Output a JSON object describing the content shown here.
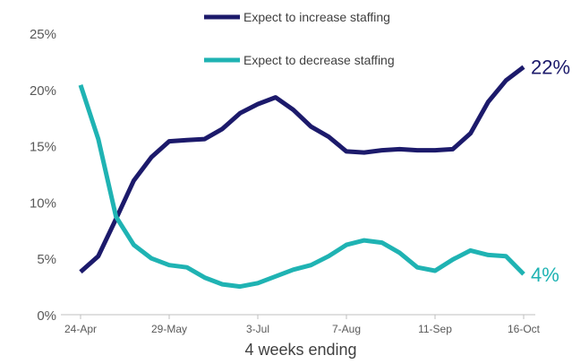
{
  "chart_data": {
    "type": "line",
    "title": "",
    "xlabel": "4 weeks ending",
    "ylabel": "",
    "ylim": [
      0,
      25
    ],
    "yticks": [
      "0%",
      "5%",
      "10%",
      "15%",
      "20%",
      "25%"
    ],
    "x": [
      "24-Apr",
      "1-May",
      "8-May",
      "15-May",
      "22-May",
      "29-May",
      "5-Jun",
      "12-Jun",
      "19-Jun",
      "26-Jun",
      "3-Jul",
      "10-Jul",
      "17-Jul",
      "24-Jul",
      "31-Jul",
      "7-Aug",
      "14-Aug",
      "21-Aug",
      "28-Aug",
      "4-Sep",
      "11-Sep",
      "18-Sep",
      "25-Sep",
      "2-Oct",
      "9-Oct",
      "16-Oct"
    ],
    "xtick_labels": [
      {
        "index": 0,
        "label": "24-Apr"
      },
      {
        "index": 5,
        "label": "29-May"
      },
      {
        "index": 10,
        "label": "3-Jul"
      },
      {
        "index": 15,
        "label": "7-Aug"
      },
      {
        "index": 20,
        "label": "11-Sep"
      },
      {
        "index": 25,
        "label": "16-Oct"
      }
    ],
    "grid": false,
    "legend_position": "top",
    "series": [
      {
        "name": "Expect to increase staffing",
        "color": "#1c1a6b",
        "end_label": "22%",
        "values": [
          3.8,
          5.2,
          8.5,
          11.9,
          14.0,
          15.4,
          15.5,
          15.6,
          16.5,
          17.9,
          18.7,
          19.3,
          18.2,
          16.7,
          15.8,
          14.5,
          14.4,
          14.6,
          14.7,
          14.6,
          14.6,
          14.7,
          16.1,
          18.9,
          20.8,
          22.0
        ]
      },
      {
        "name": "Expect to decrease staffing",
        "color": "#1fb3b3",
        "end_label": "4%",
        "values": [
          20.4,
          15.6,
          8.7,
          6.2,
          5.0,
          4.4,
          4.2,
          3.3,
          2.7,
          2.5,
          2.8,
          3.4,
          4.0,
          4.4,
          5.2,
          6.2,
          6.6,
          6.4,
          5.5,
          4.2,
          3.9,
          4.9,
          5.7,
          5.3,
          5.2,
          3.6
        ]
      }
    ]
  }
}
